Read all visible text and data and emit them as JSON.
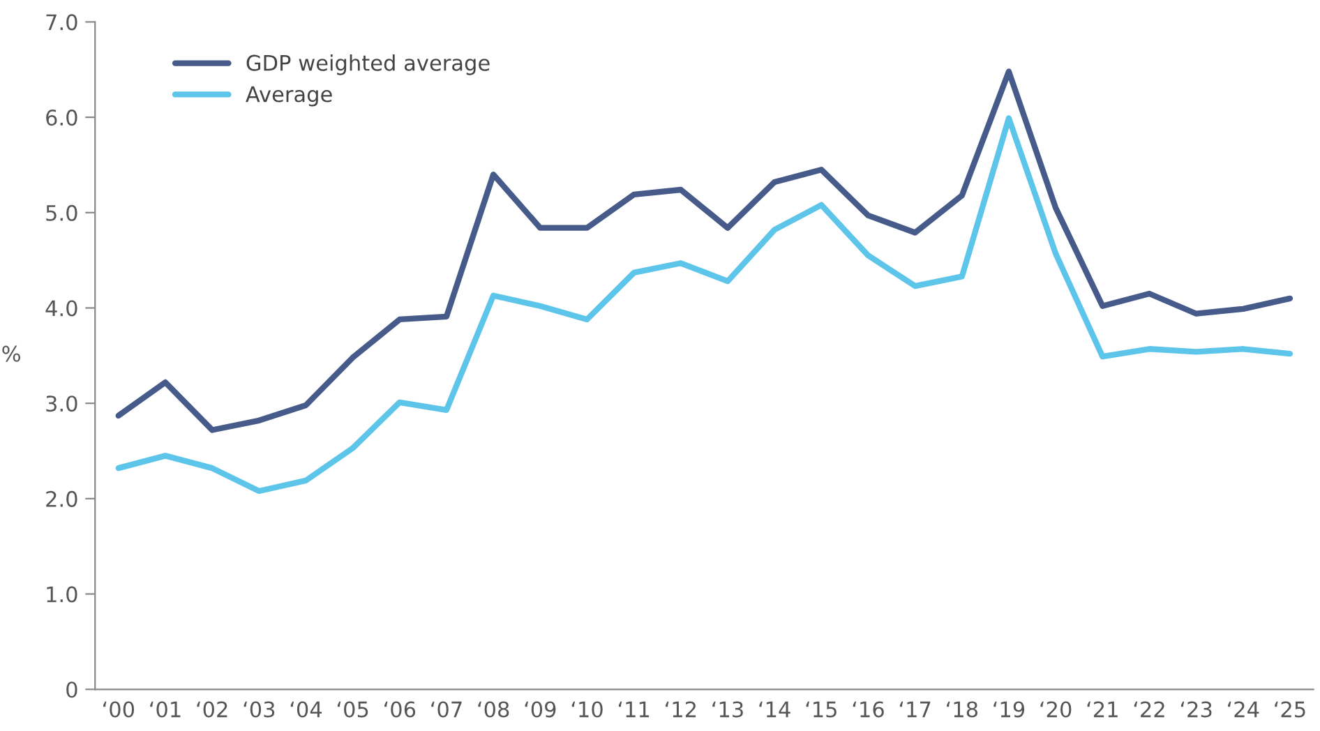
{
  "chart_data": {
    "type": "line",
    "ylabel": "%",
    "categories": [
      "‘00",
      "‘01",
      "‘02",
      "‘03",
      "‘04",
      "‘05",
      "‘06",
      "‘07",
      "‘08",
      "‘09",
      "‘10",
      "‘11",
      "‘12",
      "‘13",
      "‘14",
      "‘15",
      "‘16",
      "‘17",
      "‘18",
      "‘19",
      "‘20",
      "‘21",
      "‘22",
      "‘23",
      "‘24",
      "‘25"
    ],
    "series": [
      {
        "name": "GDP weighted average",
        "color": "#475b8a",
        "values": [
          2.87,
          3.22,
          2.72,
          2.82,
          2.98,
          3.48,
          3.88,
          3.91,
          5.4,
          4.84,
          4.84,
          5.19,
          5.24,
          4.84,
          5.32,
          5.45,
          4.97,
          4.79,
          5.18,
          6.48,
          5.05,
          4.02,
          4.15,
          3.94,
          3.99,
          4.1
        ]
      },
      {
        "name": "Average",
        "color": "#5ec5ea",
        "values": [
          2.32,
          2.45,
          2.32,
          2.08,
          2.19,
          2.53,
          3.01,
          2.93,
          4.13,
          4.02,
          3.88,
          4.37,
          4.47,
          4.28,
          4.82,
          5.08,
          4.55,
          4.23,
          4.33,
          5.99,
          4.57,
          3.49,
          3.57,
          3.54,
          3.57,
          3.52
        ]
      }
    ],
    "ylim": [
      0,
      7
    ],
    "yticks": [
      {
        "value": 0,
        "label": "0"
      },
      {
        "value": 1,
        "label": "1.0"
      },
      {
        "value": 2,
        "label": "2.0"
      },
      {
        "value": 3,
        "label": "3.0"
      },
      {
        "value": 4,
        "label": "4.0"
      },
      {
        "value": 5,
        "label": "5.0"
      },
      {
        "value": 6,
        "label": "6.0"
      },
      {
        "value": 7,
        "label": "7.0"
      }
    ],
    "grid": false,
    "legend": "top left",
    "marker": "none",
    "line_style": "solid"
  }
}
